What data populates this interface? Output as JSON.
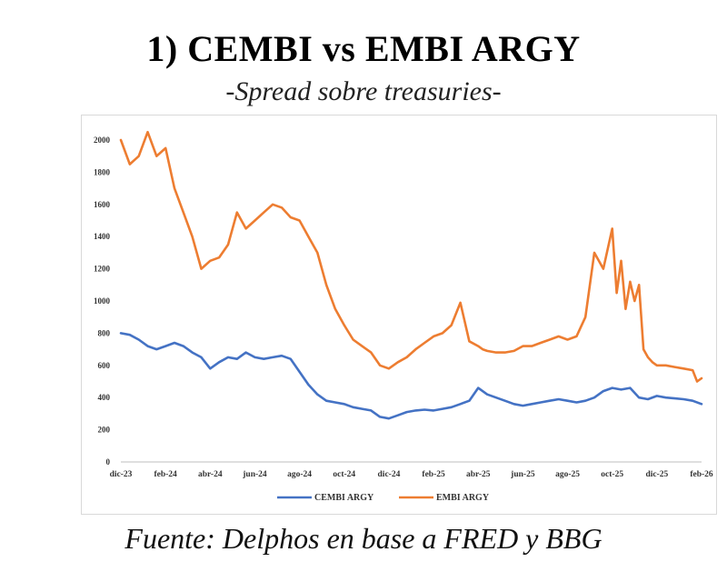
{
  "title": "1) CEMBI vs EMBI ARGY",
  "subtitle": "-Spread sobre treasuries-",
  "source": "Fuente:  Delphos en base a FRED y BBG",
  "chart_data": {
    "type": "line",
    "title": "1) CEMBI vs EMBI ARGY",
    "subtitle": "-Spread sobre treasuries-",
    "xlabel": "",
    "ylabel": "",
    "ylim": [
      0,
      2000
    ],
    "yticks": [
      0,
      200,
      400,
      600,
      800,
      1000,
      1200,
      1400,
      1600,
      1800,
      2000
    ],
    "xticks": [
      "dic-23",
      "feb-24",
      "abr-24",
      "jun-24",
      "ago-24",
      "oct-24",
      "dic-24",
      "feb-25",
      "abr-25",
      "jun-25",
      "ago-25",
      "oct-25",
      "dic-25",
      "feb-26"
    ],
    "grid": false,
    "legend_position": "bottom",
    "series": [
      {
        "name": "CEMBI ARGY",
        "color": "#4472C4",
        "x": [
          0.0,
          0.2,
          0.4,
          0.6,
          0.8,
          1.0,
          1.2,
          1.4,
          1.6,
          1.8,
          2.0,
          2.2,
          2.4,
          2.6,
          2.8,
          3.0,
          3.2,
          3.4,
          3.6,
          3.8,
          4.0,
          4.2,
          4.4,
          4.6,
          4.8,
          5.0,
          5.2,
          5.4,
          5.6,
          5.8,
          6.0,
          6.2,
          6.4,
          6.6,
          6.8,
          7.0,
          7.2,
          7.4,
          7.6,
          7.8,
          8.0,
          8.2,
          8.4,
          8.6,
          8.8,
          9.0,
          9.2,
          9.4,
          9.6,
          9.8,
          10.0,
          10.2,
          10.4,
          10.6,
          10.8,
          11.0,
          11.2,
          11.4,
          11.6,
          11.8,
          12.0,
          12.2,
          12.4,
          12.6,
          12.8,
          13.0
        ],
        "values": [
          800,
          790,
          760,
          720,
          700,
          720,
          740,
          720,
          680,
          650,
          580,
          620,
          650,
          640,
          680,
          650,
          640,
          650,
          660,
          640,
          560,
          480,
          420,
          380,
          370,
          360,
          340,
          330,
          320,
          280,
          270,
          290,
          310,
          320,
          325,
          320,
          330,
          340,
          360,
          380,
          460,
          420,
          400,
          380,
          360,
          350,
          360,
          370,
          380,
          390,
          380,
          370,
          380,
          400,
          440,
          460,
          450,
          460,
          400,
          390,
          410,
          400,
          395,
          390,
          380,
          360
        ]
      },
      {
        "name": "EMBI ARGY",
        "color": "#ED7D31",
        "x": [
          0.0,
          0.2,
          0.4,
          0.6,
          0.8,
          1.0,
          1.2,
          1.4,
          1.6,
          1.8,
          2.0,
          2.2,
          2.4,
          2.6,
          2.8,
          3.0,
          3.2,
          3.4,
          3.6,
          3.8,
          4.0,
          4.2,
          4.4,
          4.6,
          4.8,
          5.0,
          5.2,
          5.4,
          5.6,
          5.8,
          6.0,
          6.2,
          6.4,
          6.6,
          6.8,
          7.0,
          7.2,
          7.4,
          7.6,
          7.8,
          8.0,
          8.1,
          8.2,
          8.4,
          8.6,
          8.8,
          9.0,
          9.2,
          9.4,
          9.6,
          9.8,
          10.0,
          10.2,
          10.4,
          10.6,
          10.8,
          11.0,
          11.1,
          11.2,
          11.3,
          11.4,
          11.5,
          11.6,
          11.7,
          11.8,
          11.9,
          12.0,
          12.2,
          12.4,
          12.6,
          12.8,
          12.9,
          13.0
        ],
        "values": [
          2000,
          1850,
          1900,
          2050,
          1900,
          1950,
          1700,
          1550,
          1400,
          1200,
          1250,
          1270,
          1350,
          1550,
          1450,
          1500,
          1550,
          1600,
          1580,
          1520,
          1500,
          1400,
          1300,
          1100,
          950,
          850,
          760,
          720,
          680,
          600,
          580,
          620,
          650,
          700,
          740,
          780,
          800,
          850,
          990,
          750,
          720,
          700,
          690,
          680,
          680,
          690,
          720,
          720,
          740,
          760,
          780,
          760,
          780,
          900,
          1300,
          1200,
          1450,
          1050,
          1250,
          950,
          1120,
          1000,
          1100,
          700,
          650,
          620,
          600,
          600,
          590,
          580,
          570,
          500,
          520
        ]
      }
    ]
  }
}
